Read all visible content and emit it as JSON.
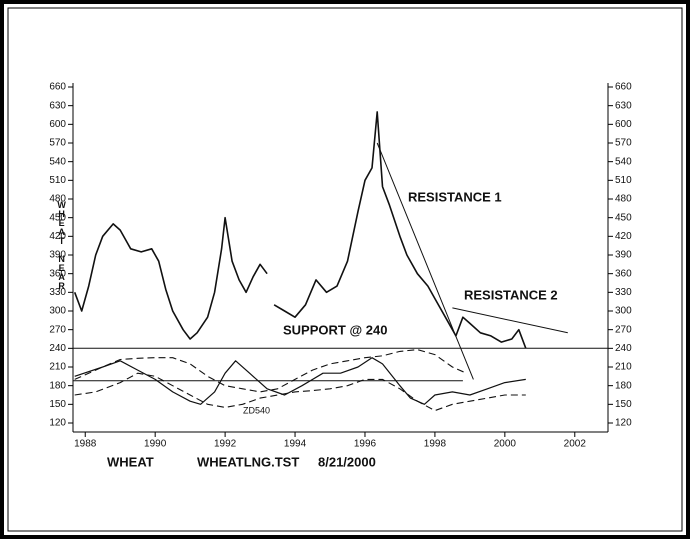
{
  "chart_data": {
    "type": "line",
    "y_label": "WHEAT NEAR",
    "footer": [
      "WHEAT",
      "WHEATLNG.TST",
      "8/21/2000"
    ],
    "annotations": [
      "RESISTANCE 1",
      "RESISTANCE 2",
      "SUPPORT @ 240",
      "ZD540"
    ],
    "xlim": [
      1987.65,
      2002.95
    ],
    "xticks": [
      1988,
      1990,
      1992,
      1994,
      1996,
      1998,
      2000,
      2002
    ],
    "ylim": [
      120,
      660
    ],
    "yticks": [
      120,
      150,
      180,
      210,
      240,
      270,
      300,
      330,
      360,
      390,
      420,
      450,
      480,
      510,
      540,
      570,
      600,
      630,
      660
    ],
    "color": "#111111",
    "series": [
      {
        "x": [
          1987.7,
          1987.9,
          1988.1,
          1988.3,
          1988.5,
          1988.8,
          1989.0,
          1989.3,
          1989.6,
          1989.9,
          1990.1,
          1990.3,
          1990.5,
          1990.8,
          1991.0,
          1991.2,
          1991.5,
          1991.7,
          1991.9,
          1992.0,
          1992.2,
          1992.4,
          1992.6,
          1992.8,
          1993.0,
          1993.2,
          1993.3,
          1993.4,
          1993.7,
          1994.0,
          1994.3,
          1994.6,
          1994.9,
          1995.2,
          1995.5,
          1995.8,
          1996.0,
          1996.2,
          1996.35,
          1996.5,
          1996.7,
          1997.0,
          1997.2,
          1997.5,
          1997.8,
          1998.0,
          1998.3,
          1998.6,
          1998.8,
          1999.0,
          1999.3,
          1999.6,
          1999.9,
          2000.2,
          2000.4,
          2000.6
        ],
        "values": [
          330,
          300,
          340,
          390,
          420,
          440,
          430,
          400,
          395,
          400,
          380,
          335,
          300,
          270,
          255,
          265,
          290,
          330,
          400,
          450,
          380,
          350,
          330,
          355,
          375,
          360,
          null,
          310,
          300,
          290,
          310,
          350,
          330,
          340,
          380,
          460,
          510,
          530,
          620,
          500,
          470,
          420,
          390,
          360,
          340,
          320,
          290,
          260,
          290,
          280,
          265,
          260,
          250,
          255,
          270,
          240
        ],
        "dash": false,
        "width": 1.6
      },
      {
        "x": [
          1987.7,
          1988.5,
          1989.0,
          1989.5,
          1990.0,
          1990.5,
          1991.0,
          1991.3,
          1991.7,
          1992.0,
          1992.3,
          1992.7,
          1993.2,
          1993.7,
          1994.2,
          1994.8,
          1995.3,
          1995.8,
          1996.2,
          1996.5,
          1997.0,
          1997.3,
          1997.7,
          1998.0,
          1998.5,
          1999.0,
          1999.5,
          2000.0,
          2000.6
        ],
        "values": [
          195,
          210,
          220,
          205,
          190,
          170,
          155,
          150,
          170,
          200,
          220,
          200,
          175,
          165,
          180,
          200,
          200,
          210,
          225,
          215,
          180,
          160,
          150,
          165,
          170,
          165,
          175,
          185,
          190
        ],
        "dash": false,
        "width": 1.2
      },
      {
        "x": [
          1987.7,
          1988.5,
          1989.0,
          1989.5,
          1990.0,
          1990.5,
          1991.0,
          1991.5,
          1992.0,
          1992.5,
          1993.0,
          1993.5,
          1994.0,
          1994.5,
          1995.0,
          1995.5,
          1996.0,
          1996.5,
          1997.0,
          1997.5,
          1998.0,
          1998.5,
          1998.9
        ],
        "values": [
          190,
          210,
          222,
          224,
          225,
          225,
          215,
          195,
          180,
          175,
          170,
          175,
          190,
          205,
          215,
          220,
          225,
          228,
          235,
          238,
          230,
          210,
          200
        ],
        "dash": true,
        "width": 1.1
      },
      {
        "x": [
          1987.7,
          1988.3,
          1989.0,
          1989.5,
          1990.0,
          1990.5,
          1991.0,
          1991.5,
          1992.0,
          1992.5,
          1993.0,
          1993.5,
          1994.0,
          1994.5,
          1995.0,
          1995.5,
          1996.0,
          1996.5,
          1997.0,
          1997.5,
          1998.0,
          1998.5,
          1999.0,
          1999.5,
          2000.0,
          2000.6
        ],
        "values": [
          165,
          170,
          185,
          200,
          195,
          180,
          165,
          150,
          145,
          150,
          160,
          165,
          170,
          172,
          175,
          180,
          190,
          190,
          175,
          155,
          140,
          150,
          155,
          160,
          165,
          165
        ],
        "dash": true,
        "width": 1.1
      }
    ],
    "trend_lines": [
      {
        "x": [
          1987.65,
          2002.95
        ],
        "values": [
          240,
          240
        ]
      },
      {
        "x": [
          1987.65,
          1998.8
        ],
        "values": [
          188,
          188
        ]
      },
      {
        "x": [
          1996.35,
          1999.1
        ],
        "values": [
          570,
          190
        ]
      },
      {
        "x": [
          1998.5,
          2001.8
        ],
        "values": [
          305,
          265
        ]
      }
    ]
  }
}
